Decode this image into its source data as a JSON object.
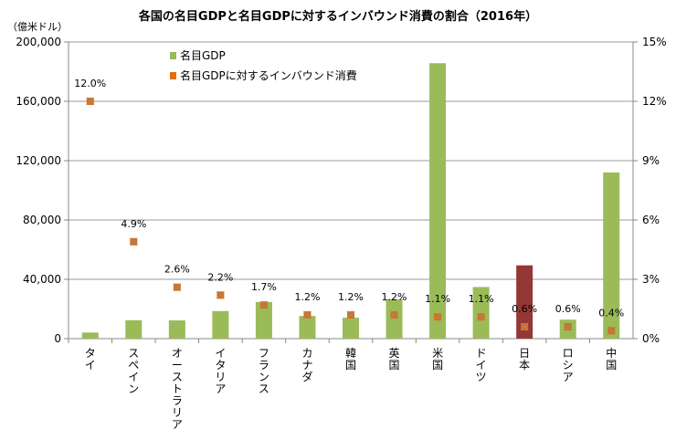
{
  "chart_data": {
    "type": "bar",
    "title": "各国の名目GDPと名目GDPに対するインバウンド消費の割合（2016年）",
    "ylabel": "（億米ドル）",
    "ylim": [
      0,
      200000
    ],
    "y2lim": [
      0,
      15
    ],
    "yticks": [
      "0",
      "40,000",
      "80,000",
      "120,000",
      "160,000",
      "200,000"
    ],
    "y2ticks": [
      "0%",
      "3%",
      "6%",
      "9%",
      "12%",
      "15%"
    ],
    "grid": true,
    "legend_placement": "top-left",
    "categories": [
      "タイ",
      "スペイン",
      "オーストラリア",
      "イタリア",
      "フランス",
      "カナダ",
      "韓国",
      "英国",
      "米国",
      "ドイツ",
      "日本",
      "ロシア",
      "中国"
    ],
    "series": [
      {
        "name": "名目GDP",
        "type": "bar",
        "axis": "left",
        "color": "#9bbb59",
        "highlight_color": "#953735",
        "highlight_category": "日本",
        "values": [
          4100,
          12400,
          12300,
          18600,
          24700,
          15300,
          14100,
          26500,
          185700,
          34800,
          49400,
          12800,
          112000
        ]
      },
      {
        "name": "名目GDPに対するインバウンド消費",
        "type": "scatter",
        "axis": "right",
        "color": "#e46c0a",
        "values": [
          12.0,
          4.9,
          2.6,
          2.2,
          1.7,
          1.2,
          1.2,
          1.2,
          1.1,
          1.1,
          0.6,
          0.6,
          0.4
        ],
        "labels": [
          "12.0%",
          "4.9%",
          "2.6%",
          "2.2%",
          "1.7%",
          "1.2%",
          "1.2%",
          "1.2%",
          "1.1%",
          "1.1%",
          "0.6%",
          "0.6%",
          "0.4%"
        ]
      }
    ]
  }
}
